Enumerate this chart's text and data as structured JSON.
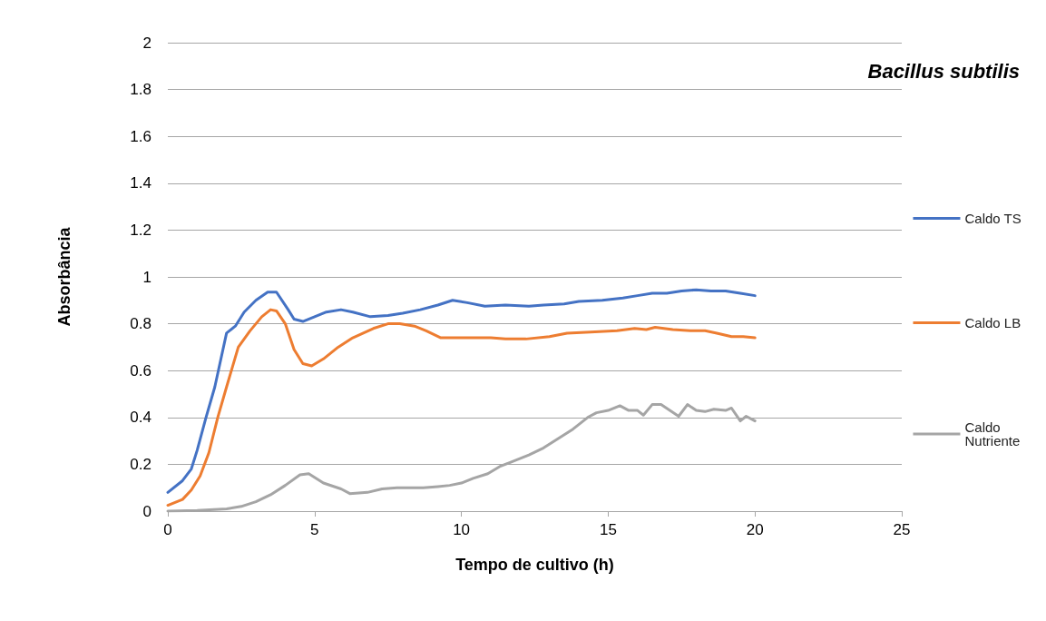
{
  "chart_data": {
    "type": "line",
    "title": "Bacillus subtilis",
    "xlabel": "Tempo de cultivo (h)",
    "ylabel": "Absorbância",
    "xlim": [
      0,
      25
    ],
    "xticks": [
      0,
      5,
      10,
      15,
      20,
      25
    ],
    "ylim": [
      0,
      2
    ],
    "yticks": [
      0,
      0.2,
      0.4,
      0.6,
      0.8,
      1,
      1.2,
      1.4,
      1.6,
      1.8,
      2
    ],
    "grid": "y",
    "legend": "right",
    "marker": "none",
    "line_style": "solid",
    "series": [
      {
        "name": "Caldo TS",
        "color": "#4472c4",
        "x": [
          0,
          0.5,
          0.8,
          1,
          1.3,
          1.6,
          2,
          2.3,
          2.6,
          3,
          3.4,
          3.7,
          4.1,
          4.3,
          4.6,
          5,
          5.4,
          5.9,
          6.3,
          6.9,
          7.5,
          8,
          8.6,
          9.2,
          9.7,
          10.2,
          10.8,
          11.5,
          12.3,
          12.8,
          13.5,
          14,
          14.8,
          15.5,
          16,
          16.5,
          17,
          17.5,
          18,
          18.5,
          19,
          19.5,
          20
        ],
        "values": [
          0.08,
          0.13,
          0.18,
          0.26,
          0.4,
          0.53,
          0.76,
          0.79,
          0.85,
          0.9,
          0.935,
          0.935,
          0.86,
          0.82,
          0.81,
          0.83,
          0.85,
          0.86,
          0.85,
          0.83,
          0.835,
          0.845,
          0.86,
          0.88,
          0.9,
          0.89,
          0.875,
          0.88,
          0.875,
          0.88,
          0.885,
          0.895,
          0.9,
          0.91,
          0.92,
          0.93,
          0.93,
          0.94,
          0.945,
          0.94,
          0.94,
          0.93,
          0.92
        ]
      },
      {
        "name": "Caldo LB",
        "color": "#ed7d31",
        "x": [
          0,
          0.5,
          0.8,
          1.1,
          1.4,
          1.7,
          2,
          2.4,
          2.8,
          3.2,
          3.5,
          3.7,
          4,
          4.3,
          4.6,
          4.9,
          5.3,
          5.8,
          6.3,
          7,
          7.5,
          7.9,
          8.4,
          8.8,
          9.3,
          10,
          11,
          11.5,
          12.2,
          13,
          13.6,
          14.4,
          15.3,
          15.9,
          16.3,
          16.6,
          17.2,
          17.8,
          18.3,
          18.7,
          19.2,
          19.6,
          20
        ],
        "values": [
          0.025,
          0.05,
          0.09,
          0.15,
          0.25,
          0.4,
          0.53,
          0.7,
          0.77,
          0.83,
          0.86,
          0.855,
          0.8,
          0.69,
          0.63,
          0.62,
          0.65,
          0.7,
          0.74,
          0.78,
          0.8,
          0.8,
          0.79,
          0.77,
          0.74,
          0.74,
          0.74,
          0.735,
          0.735,
          0.745,
          0.76,
          0.765,
          0.77,
          0.78,
          0.775,
          0.785,
          0.775,
          0.77,
          0.77,
          0.76,
          0.745,
          0.745,
          0.74
        ]
      },
      {
        "name": "Caldo\nNutriente",
        "color": "#a5a5a5",
        "x": [
          0,
          1,
          2,
          2.5,
          3,
          3.5,
          4,
          4.5,
          4.8,
          5.3,
          5.9,
          6.2,
          6.8,
          7.3,
          7.8,
          8.3,
          8.7,
          9.2,
          9.6,
          10,
          10.4,
          10.9,
          11.3,
          11.7,
          12.3,
          12.8,
          13.3,
          13.8,
          14.3,
          14.6,
          15,
          15.4,
          15.7,
          16,
          16.2,
          16.5,
          16.8,
          17.1,
          17.4,
          17.7,
          18,
          18.3,
          18.6,
          19,
          19.2,
          19.5,
          19.7,
          20
        ],
        "values": [
          0,
          0.003,
          0.01,
          0.02,
          0.04,
          0.07,
          0.11,
          0.155,
          0.16,
          0.12,
          0.095,
          0.075,
          0.08,
          0.095,
          0.1,
          0.1,
          0.1,
          0.105,
          0.11,
          0.12,
          0.14,
          0.16,
          0.19,
          0.21,
          0.24,
          0.27,
          0.31,
          0.35,
          0.4,
          0.42,
          0.43,
          0.45,
          0.43,
          0.43,
          0.41,
          0.455,
          0.455,
          0.43,
          0.405,
          0.455,
          0.43,
          0.425,
          0.435,
          0.43,
          0.44,
          0.385,
          0.405,
          0.385
        ]
      }
    ]
  }
}
